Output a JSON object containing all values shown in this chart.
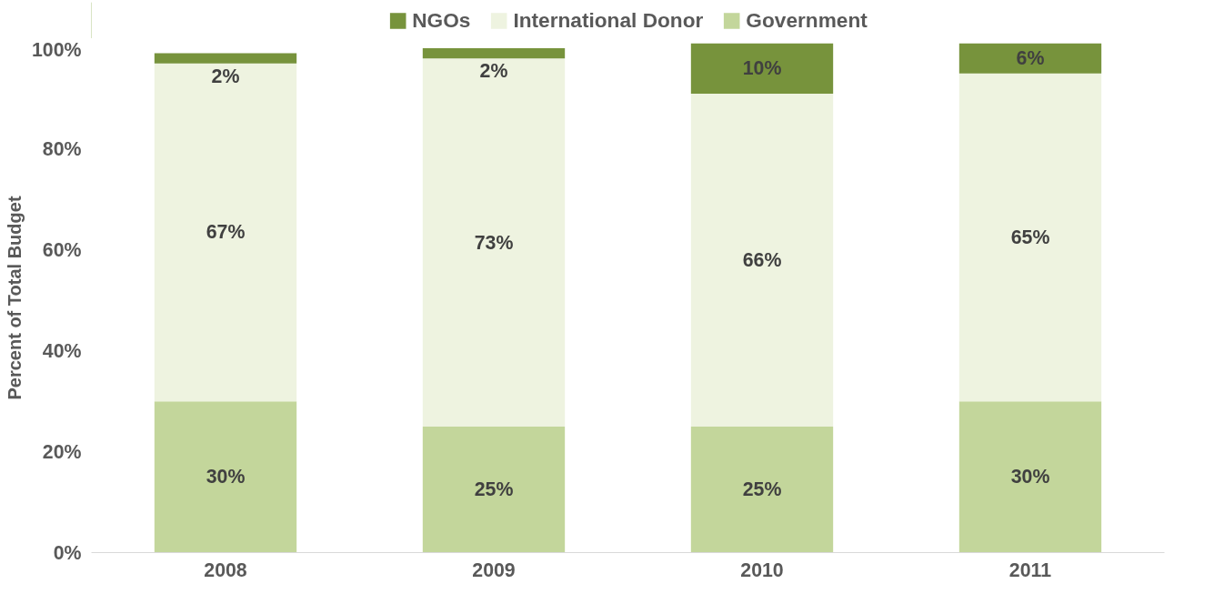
{
  "chart_data": {
    "type": "bar",
    "stacked": true,
    "categories": [
      "2008",
      "2009",
      "2010",
      "2011"
    ],
    "ylabel": "Percent of Total Budget",
    "ylim": [
      0,
      101
    ],
    "yticks": [
      {
        "value": 0,
        "label": "0%"
      },
      {
        "value": 20,
        "label": "20%"
      },
      {
        "value": 40,
        "label": "40%"
      },
      {
        "value": 60,
        "label": "60%"
      },
      {
        "value": 80,
        "label": "80%"
      },
      {
        "value": 100,
        "label": "100%"
      }
    ],
    "grid": false,
    "legend": "top",
    "series": [
      {
        "name": "Government",
        "color": "#c3d69b",
        "values": [
          30,
          25,
          25,
          30
        ],
        "value_labels": [
          "30%",
          "25%",
          "25%",
          "30%"
        ]
      },
      {
        "name": "International Donor",
        "color": "#eef3e0",
        "values": [
          67,
          73,
          66,
          65
        ],
        "value_labels": [
          "67%",
          "73%",
          "66%",
          "65%"
        ]
      },
      {
        "name": "NGOs",
        "color": "#77933c",
        "values": [
          2,
          2,
          10,
          6
        ],
        "value_labels": [
          "2%",
          "2%",
          "10%",
          "6%"
        ]
      }
    ]
  }
}
